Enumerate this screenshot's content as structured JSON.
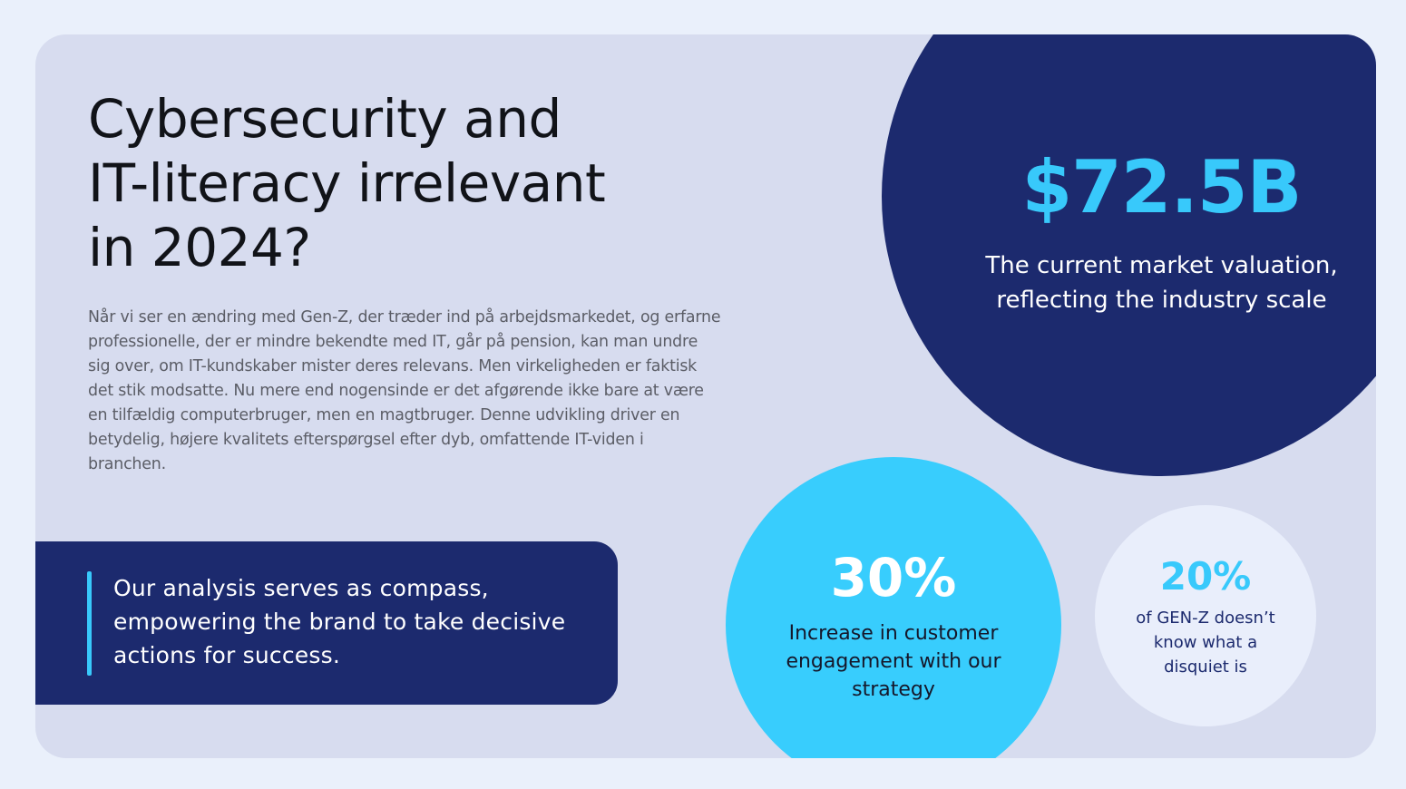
{
  "headline": {
    "line1": "Cybersecurity and",
    "line2": "IT-literacy irrelevant",
    "line3": "in 2024?"
  },
  "body": {
    "paragraph": "Når vi ser en ændring med Gen-Z, der træder ind på arbejdsmarkedet, og erfarne professionelle, der er mindre bekendte med IT, går på pension, kan man undre sig over, om IT-kundskaber mister deres relevans. Men virkeligheden er faktisk det stik modsatte. Nu mere end nogensinde er det afgørende ikke bare at være en tilfældig computerbruger, men en magtbruger. Denne udvikling driver en betydelig, højere kvalitets efterspørgsel efter dyb, omfattende IT-viden i branchen."
  },
  "quote": {
    "text": "Our analysis serves as compass, empowering the brand to take decisive actions for success."
  },
  "stats": {
    "market": {
      "value": "$72.5B",
      "line1": "The current market valuation,",
      "line2": "reflecting the industry scale"
    },
    "engagement": {
      "value": "30%",
      "line1": "Increase in customer",
      "line2": "engagement with our",
      "line3": "strategy"
    },
    "genz": {
      "value": "20%",
      "line1": "of GEN-Z doesn’t",
      "line2": "know what a",
      "line3": "disquiet is"
    }
  },
  "colors": {
    "page_background": "#eaf0fb",
    "card_background": "#d7dcef",
    "navy": "#1c2a6e",
    "cyan": "#38c9fb",
    "light_circle": "#e9eefb"
  }
}
